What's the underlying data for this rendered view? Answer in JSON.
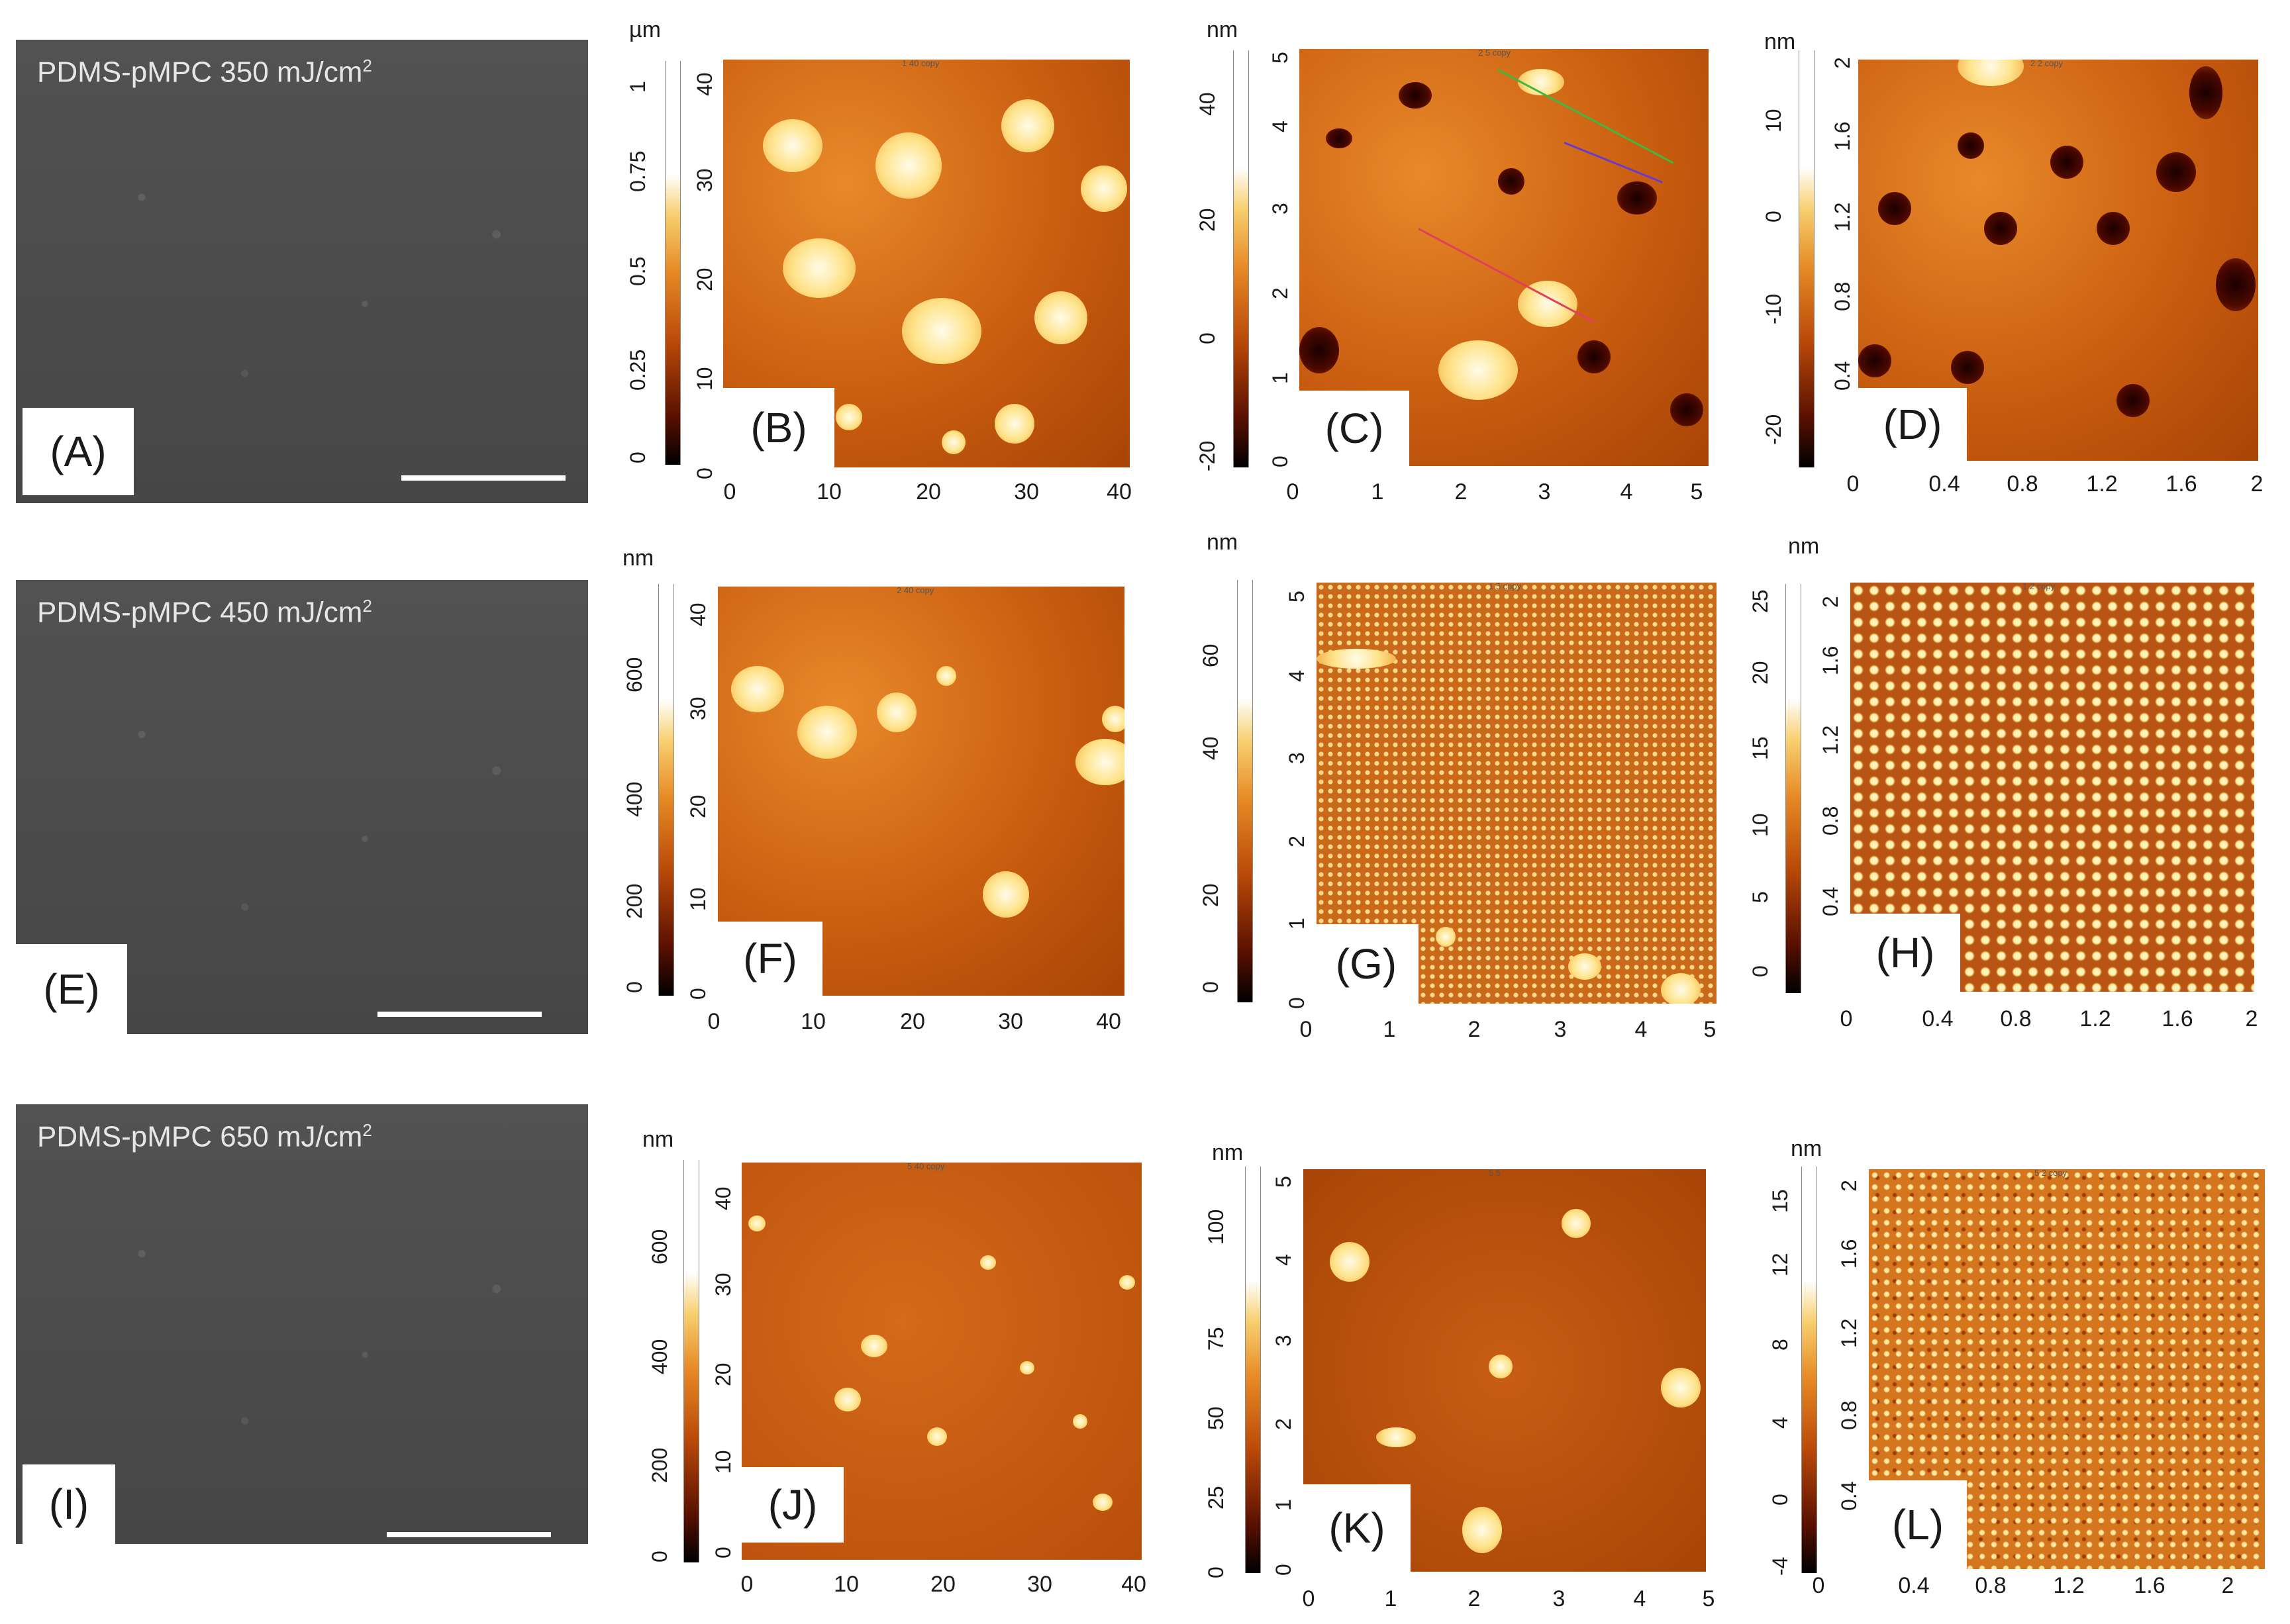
{
  "figure": {
    "panels": {
      "A": {
        "label": "(A)",
        "sample": "PDMS-pMPC 350 mJ/cm",
        "unit_sup": "2"
      },
      "E": {
        "label": "(E)",
        "sample": "PDMS-pMPC 450 mJ/cm",
        "unit_sup": "2"
      },
      "I": {
        "label": "(I)",
        "sample": "PDMS-pMPC 650 mJ/cm",
        "unit_sup": "2"
      },
      "B": {
        "label": "(B)",
        "title": "1 40 copy",
        "unit": "µm",
        "scale_ticks": [
          "0",
          "0.25",
          "0.5",
          "0.75",
          "1"
        ],
        "y_ticks": [
          "0",
          "10",
          "20",
          "30",
          "40"
        ],
        "x_ticks": [
          "0",
          "10",
          "20",
          "30",
          "40"
        ]
      },
      "C": {
        "label": "(C)",
        "title": "2 5 copy",
        "unit": "nm",
        "scale_ticks": [
          "-20",
          "0",
          "20",
          "40"
        ],
        "y_ticks": [
          "0",
          "1",
          "2",
          "3",
          "4",
          "5"
        ],
        "x_ticks": [
          "0",
          "1",
          "2",
          "3",
          "4",
          "5"
        ]
      },
      "D": {
        "label": "(D)",
        "title": "2 2 copy",
        "unit": "nm",
        "scale_ticks": [
          "-20",
          "-10",
          "0",
          "10"
        ],
        "y_ticks": [
          "0.4",
          "0.8",
          "1.2",
          "1.6",
          "2"
        ],
        "x_ticks": [
          "0",
          "0.4",
          "0.8",
          "1.2",
          "1.6",
          "2"
        ]
      },
      "F": {
        "label": "(F)",
        "title": "2 40 copy",
        "unit": "nm",
        "scale_ticks": [
          "0",
          "200",
          "400",
          "600"
        ],
        "y_ticks": [
          "0",
          "10",
          "20",
          "30",
          "40"
        ],
        "x_ticks": [
          "0",
          "10",
          "20",
          "30",
          "40"
        ]
      },
      "G": {
        "label": "(G)",
        "title": "1 5 copy",
        "unit": "nm",
        "scale_ticks": [
          "0",
          "20",
          "40",
          "60"
        ],
        "y_ticks": [
          "0",
          "1",
          "2",
          "3",
          "4",
          "5"
        ],
        "x_ticks": [
          "0",
          "1",
          "2",
          "3",
          "4",
          "5"
        ]
      },
      "H": {
        "label": "(H)",
        "title": "1 2 copy",
        "unit": "nm",
        "scale_ticks": [
          "0",
          "5",
          "10",
          "15",
          "20",
          "25"
        ],
        "y_ticks": [
          "0.4",
          "0.8",
          "1.2",
          "1.6",
          "2"
        ],
        "x_ticks": [
          "0",
          "0.4",
          "0.8",
          "1.2",
          "1.6",
          "2"
        ]
      },
      "J": {
        "label": "(J)",
        "title": "5 40 copy",
        "unit": "nm",
        "scale_ticks": [
          "0",
          "200",
          "400",
          "600"
        ],
        "y_ticks": [
          "0",
          "10",
          "20",
          "30",
          "40"
        ],
        "x_ticks": [
          "0",
          "10",
          "20",
          "30",
          "40"
        ]
      },
      "K": {
        "label": "(K)",
        "title": "5 5",
        "unit": "nm",
        "scale_ticks": [
          "0",
          "25",
          "50",
          "75",
          "100"
        ],
        "y_ticks": [
          "0",
          "1",
          "2",
          "3",
          "4",
          "5"
        ],
        "x_ticks": [
          "0",
          "1",
          "2",
          "3",
          "4",
          "5"
        ]
      },
      "L": {
        "label": "(L)",
        "title": "5 2 copy",
        "unit": "nm",
        "scale_ticks": [
          "-4",
          "0",
          "4",
          "8",
          "12",
          "15"
        ],
        "y_ticks": [
          "0.4",
          "0.8",
          "1.2",
          "1.6",
          "2"
        ],
        "x_ticks": [
          "0",
          "0.4",
          "0.8",
          "1.2",
          "1.6",
          "2"
        ]
      }
    }
  }
}
